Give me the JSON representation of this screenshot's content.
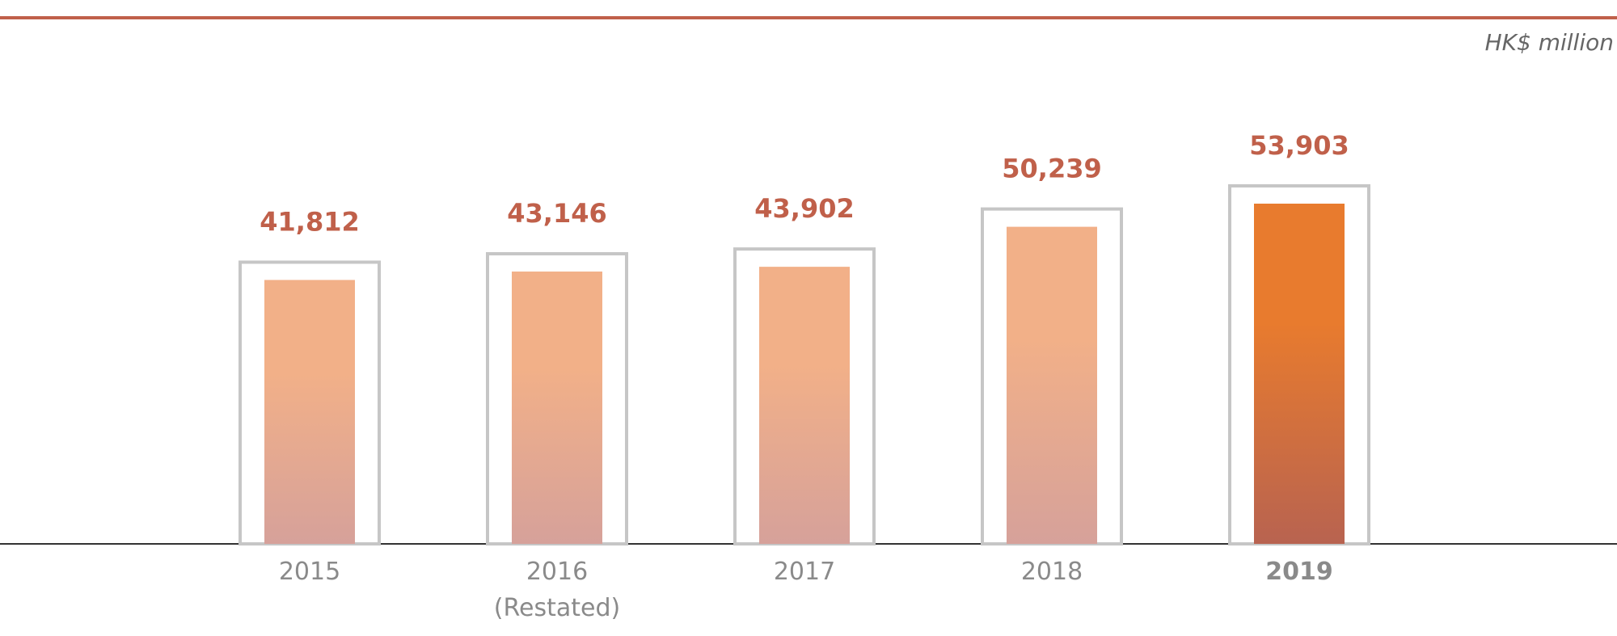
{
  "chart_data": {
    "type": "bar",
    "y_label": "HK$ million",
    "categories": [
      "2015",
      "2016\n(Restated)",
      "2017",
      "2018",
      "2019"
    ],
    "values": [
      41812,
      43146,
      43902,
      50239,
      53903
    ],
    "value_labels": [
      "41,812",
      "43,146",
      "43,902",
      "50,239",
      "53,903"
    ],
    "colors": [
      "#f2b088",
      "#f2b088",
      "#f2b088",
      "#f2b088",
      "#e87b2e"
    ],
    "bottom_colors": [
      "#d6a19a",
      "#d6a19a",
      "#d6a19a",
      "#d6a19a",
      "#b86350"
    ]
  }
}
